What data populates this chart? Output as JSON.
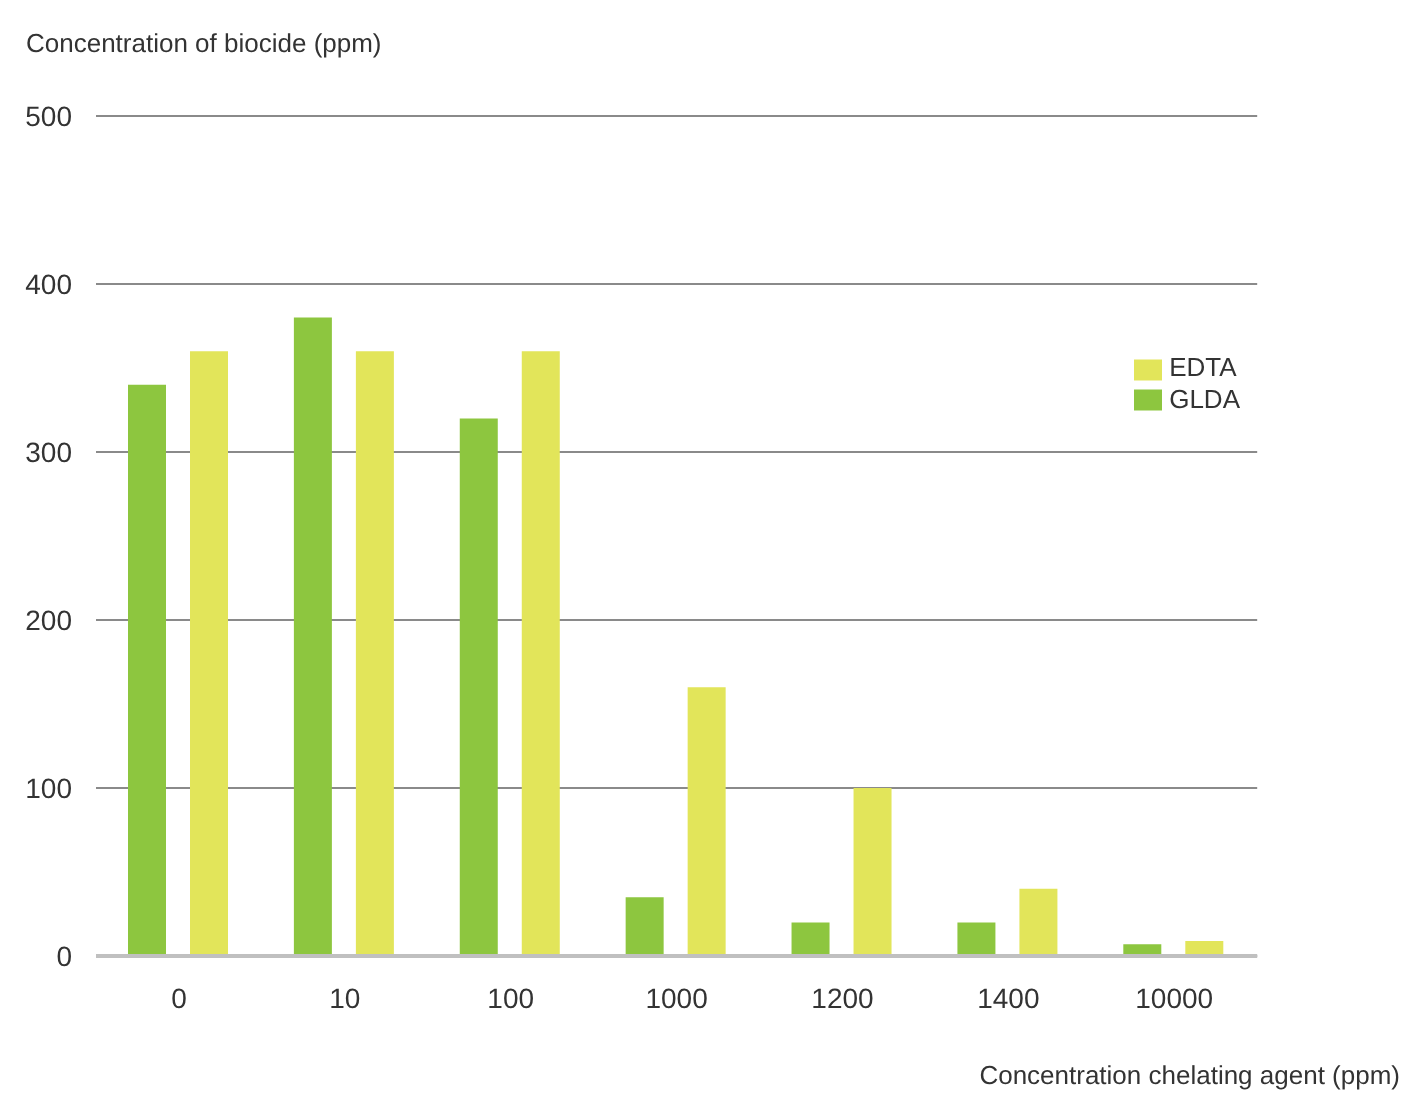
{
  "chart_data": {
    "type": "bar",
    "xlabel": "Concentration chelating agent (ppm)",
    "ylabel": "Concentration of biocide (ppm)",
    "categories": [
      "0",
      "10",
      "100",
      "1000",
      "1200",
      "1400",
      "10000"
    ],
    "series": [
      {
        "name": "GLDA",
        "color": "#8dc63f",
        "values": [
          340,
          380,
          320,
          35,
          20,
          20,
          7
        ]
      },
      {
        "name": "EDTA",
        "color": "#e2e55a",
        "values": [
          360,
          360,
          360,
          160,
          100,
          40,
          9
        ]
      }
    ],
    "ylim": [
      0,
      500
    ],
    "yticks": [
      0,
      100,
      200,
      300,
      400,
      500
    ],
    "grid": "y",
    "legend": "top right"
  }
}
